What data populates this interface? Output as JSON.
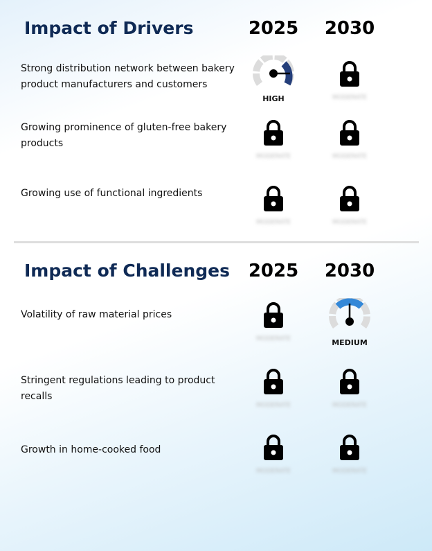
{
  "drivers": {
    "title": "Impact of Drivers",
    "years": [
      "2025",
      "2030"
    ],
    "rows": [
      {
        "label": "Strong distribution network between bakery product manufacturers and customers",
        "cells": [
          {
            "type": "gauge",
            "level": "HIGH"
          },
          {
            "type": "locked",
            "hidden_text": "MODERATE"
          }
        ]
      },
      {
        "label": "Growing prominence of gluten-free bakery products",
        "cells": [
          {
            "type": "locked",
            "hidden_text": "MODERATE"
          },
          {
            "type": "locked",
            "hidden_text": "MODERATE"
          }
        ]
      },
      {
        "label": "Growing use of functional ingredients",
        "cells": [
          {
            "type": "locked",
            "hidden_text": "MODERATE"
          },
          {
            "type": "locked",
            "hidden_text": "MODERATE"
          }
        ]
      }
    ]
  },
  "challenges": {
    "title": "Impact of Challenges",
    "years": [
      "2025",
      "2030"
    ],
    "rows": [
      {
        "label": "Volatility of raw material prices",
        "cells": [
          {
            "type": "locked",
            "hidden_text": "MODERATE"
          },
          {
            "type": "gauge",
            "level": "MEDIUM"
          }
        ]
      },
      {
        "label": "Stringent regulations leading to product recalls",
        "cells": [
          {
            "type": "locked",
            "hidden_text": "MODERATE"
          },
          {
            "type": "locked",
            "hidden_text": "MODERATE"
          }
        ]
      },
      {
        "label": "Growth in home-cooked food",
        "cells": [
          {
            "type": "locked",
            "hidden_text": "MODERATE"
          },
          {
            "type": "locked",
            "hidden_text": "MODERATE"
          }
        ]
      }
    ]
  },
  "colors": {
    "title": "#0f2a55",
    "high": "#243e7a",
    "medium": "#3388d8",
    "gauge_track": "#dcdcdc",
    "lock": "#000000"
  },
  "icons": {
    "lock": "lock-icon",
    "gauge": "gauge-icon"
  }
}
